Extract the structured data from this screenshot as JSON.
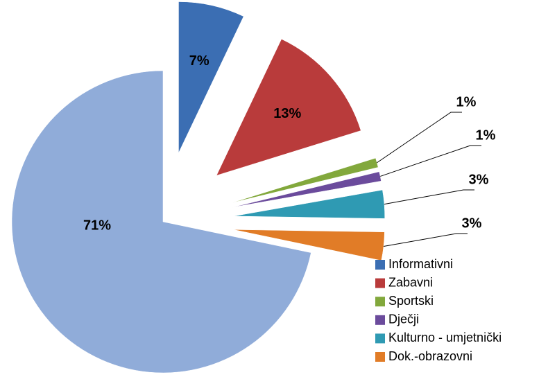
{
  "chart_data": {
    "type": "pie",
    "categories": [
      "Informativni",
      "Zabavni",
      "Sportski",
      "Dječji",
      "Kulturno - umjetnički",
      "Dok.-obrazovni",
      null
    ],
    "values": [
      7,
      13,
      1,
      1,
      3,
      3,
      71
    ],
    "value_labels": [
      "7%",
      "13%",
      "1%",
      "1%",
      "3%",
      "3%",
      "71%"
    ],
    "colors": [
      "#3b6eb3",
      "#b93b3b",
      "#82a83c",
      "#6b4b9c",
      "#2f9ab3",
      "#e17c27",
      "#90acd9"
    ],
    "legend": "lower right"
  }
}
